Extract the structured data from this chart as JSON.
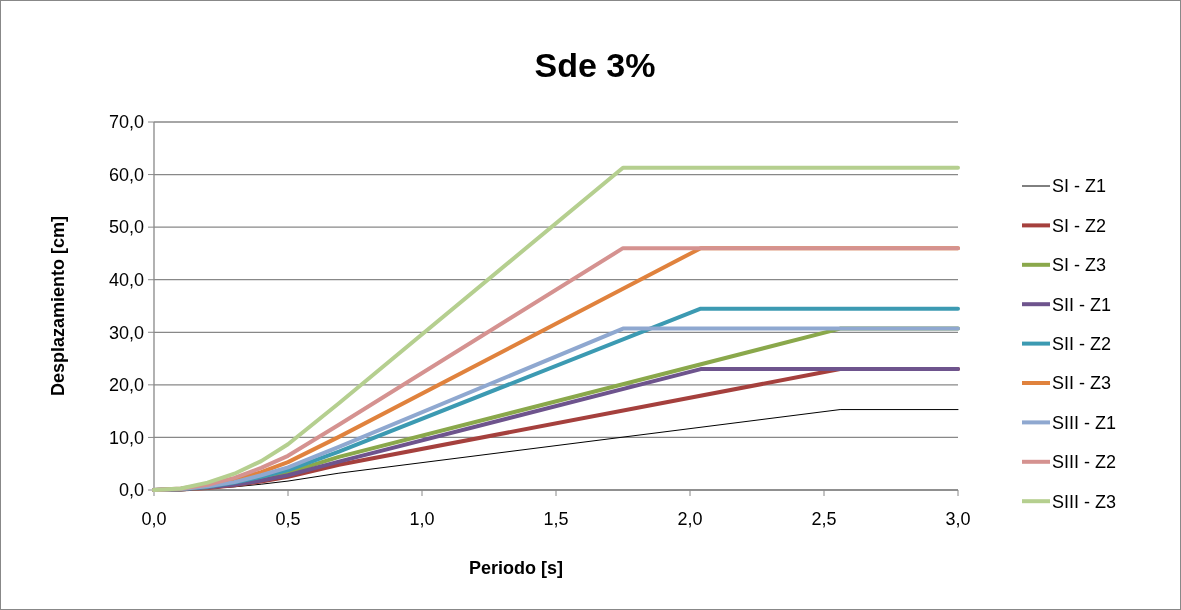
{
  "chart_data": {
    "type": "line",
    "title": "Sde 3%",
    "xlabel": "Periodo [s]",
    "ylabel": "Desplazamiento [cm]",
    "xlim": [
      0,
      3
    ],
    "xticks": [
      {
        "value": 0,
        "label": "0,0"
      },
      {
        "value": 0.5,
        "label": "0,5"
      },
      {
        "value": 1,
        "label": "1,0"
      },
      {
        "value": 1.5,
        "label": "1,5"
      },
      {
        "value": 2,
        "label": "2,0"
      },
      {
        "value": 2.5,
        "label": "2,5"
      },
      {
        "value": 3,
        "label": "3,0"
      }
    ],
    "ylim": [
      0,
      70
    ],
    "yticks": [
      {
        "value": 0,
        "label": "0,0"
      },
      {
        "value": 10,
        "label": "10,0"
      },
      {
        "value": 20,
        "label": "20,0"
      },
      {
        "value": 30,
        "label": "30,0"
      },
      {
        "value": 40,
        "label": "40,0"
      },
      {
        "value": 50,
        "label": "50,0"
      },
      {
        "value": 60,
        "label": "60,0"
      },
      {
        "value": 70,
        "label": "70,0"
      }
    ],
    "grid": "y",
    "legend": "right",
    "marker": "none",
    "line_style": "solid",
    "series": [
      {
        "name": "SI - Z1",
        "color": "#000000",
        "x": [
          0,
          0.1,
          0.2,
          0.3,
          0.4,
          0.5,
          0.69,
          2.56,
          3.0
        ],
        "values": [
          0,
          null,
          0.3,
          0.6,
          1.1,
          1.7,
          3.2,
          15.3,
          15.3
        ]
      },
      {
        "name": "SI - Z2",
        "color": "#a5403d",
        "x": [
          0,
          0.1,
          0.2,
          0.3,
          0.4,
          0.5,
          0.69,
          2.56,
          3.0
        ],
        "values": [
          0,
          0.1,
          0.4,
          0.9,
          1.6,
          2.5,
          4.8,
          23.0,
          23.0
        ]
      },
      {
        "name": "SI - Z3",
        "color": "#8aa84b",
        "x": [
          0,
          0.1,
          0.2,
          0.3,
          0.4,
          0.5,
          0.69,
          2.56,
          3.0
        ],
        "values": [
          0,
          0.1,
          0.5,
          1.2,
          2.1,
          3.3,
          6.3,
          30.7,
          30.7
        ]
      },
      {
        "name": "SII - Z1",
        "color": "#6e548d",
        "x": [
          0,
          0.1,
          0.2,
          0.3,
          0.4,
          0.5,
          0.69,
          2.04,
          3.0
        ],
        "values": [
          0,
          0.1,
          0.5,
          1.0,
          1.8,
          2.8,
          5.4,
          23.0,
          23.0
        ]
      },
      {
        "name": "SII - Z2",
        "color": "#3c9ab2",
        "x": [
          0,
          0.1,
          0.2,
          0.3,
          0.4,
          0.5,
          0.69,
          2.04,
          3.0
        ],
        "values": [
          0,
          0.2,
          0.6,
          1.4,
          2.5,
          3.8,
          7.3,
          34.5,
          34.5
        ]
      },
      {
        "name": "SII - Z3",
        "color": "#e0823d",
        "x": [
          0,
          0.1,
          0.2,
          0.3,
          0.4,
          0.5,
          0.69,
          2.04,
          3.0
        ],
        "values": [
          0,
          0.2,
          0.8,
          1.9,
          3.4,
          5.3,
          10.1,
          46.0,
          46.0
        ]
      },
      {
        "name": "SIII - Z1",
        "color": "#8fa8d0",
        "x": [
          0,
          0.1,
          0.2,
          0.3,
          0.4,
          0.5,
          0.69,
          1.75,
          3.0
        ],
        "values": [
          0,
          0.2,
          0.7,
          1.5,
          2.8,
          4.3,
          8.2,
          30.7,
          30.7
        ]
      },
      {
        "name": "SIII - Z2",
        "color": "#d59290",
        "x": [
          0,
          0.1,
          0.2,
          0.3,
          0.4,
          0.5,
          0.69,
          1.75,
          3.0
        ],
        "values": [
          0,
          0.3,
          1.0,
          2.3,
          4.2,
          6.5,
          12.4,
          46.0,
          46.0
        ]
      },
      {
        "name": "SIII - Z3",
        "color": "#b5cf8f",
        "x": [
          0,
          0.1,
          0.2,
          0.3,
          0.4,
          0.5,
          0.69,
          1.75,
          3.0
        ],
        "values": [
          0,
          0.3,
          1.4,
          3.1,
          5.5,
          8.7,
          16.5,
          61.3,
          61.3
        ]
      }
    ]
  }
}
